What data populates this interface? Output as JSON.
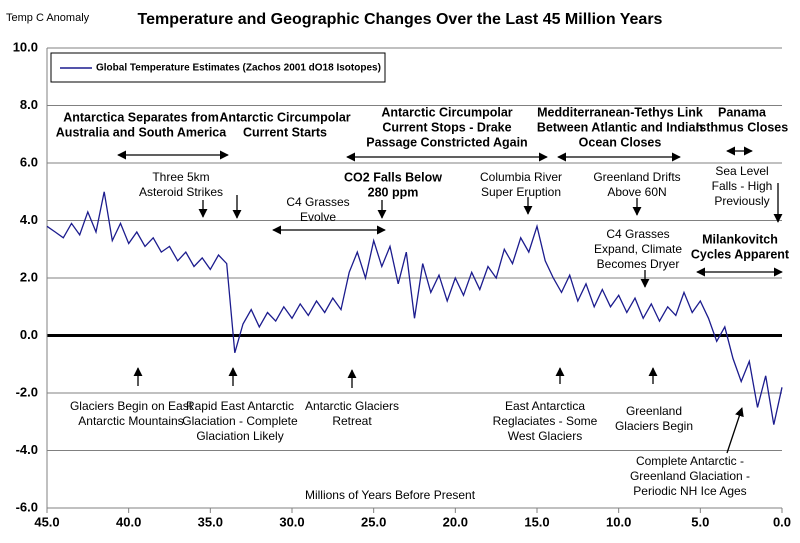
{
  "chart_data": {
    "type": "line",
    "title": "Temperature and Geographic Changes Over the Last 45 Million Years",
    "y_label": "Temp C Anomaly",
    "x_label": "Millions of Years Before Present",
    "x": [
      45.0,
      44.5,
      44.0,
      43.5,
      43.0,
      42.5,
      42.0,
      41.5,
      41.0,
      40.5,
      40.0,
      39.5,
      39.0,
      38.5,
      38.0,
      37.5,
      37.0,
      36.5,
      36.0,
      35.5,
      35.0,
      34.5,
      34.0,
      33.5,
      33.0,
      32.5,
      32.0,
      31.5,
      31.0,
      30.5,
      30.0,
      29.5,
      29.0,
      28.5,
      28.0,
      27.5,
      27.0,
      26.5,
      26.0,
      25.5,
      25.0,
      24.5,
      24.0,
      23.5,
      23.0,
      22.5,
      22.0,
      21.5,
      21.0,
      20.5,
      20.0,
      19.5,
      19.0,
      18.5,
      18.0,
      17.5,
      17.0,
      16.5,
      16.0,
      15.5,
      15.0,
      14.5,
      14.0,
      13.5,
      13.0,
      12.5,
      12.0,
      11.5,
      11.0,
      10.5,
      10.0,
      9.5,
      9.0,
      8.5,
      8.0,
      7.5,
      7.0,
      6.5,
      6.0,
      5.5,
      5.0,
      4.5,
      4.0,
      3.5,
      3.0,
      2.5,
      2.0,
      1.5,
      1.0,
      0.5,
      0.0
    ],
    "series": [
      {
        "name": "Global Temperature Estimates (Zachos 2001 dO18 Isotopes)",
        "color": "#1c1c8e",
        "values": [
          3.8,
          3.6,
          3.4,
          3.9,
          3.5,
          4.3,
          3.6,
          5.0,
          3.3,
          3.9,
          3.2,
          3.6,
          3.1,
          3.4,
          2.9,
          3.1,
          2.6,
          2.9,
          2.4,
          2.7,
          2.3,
          2.8,
          2.5,
          -0.6,
          0.4,
          0.9,
          0.3,
          0.8,
          0.5,
          1.0,
          0.6,
          1.1,
          0.7,
          1.2,
          0.8,
          1.3,
          0.9,
          2.2,
          2.9,
          2.0,
          3.3,
          2.4,
          3.1,
          1.8,
          2.9,
          0.6,
          2.5,
          1.5,
          2.1,
          1.2,
          2.0,
          1.4,
          2.2,
          1.6,
          2.4,
          2.0,
          3.0,
          2.5,
          3.4,
          2.9,
          3.8,
          2.6,
          2.0,
          1.5,
          2.1,
          1.2,
          1.8,
          1.0,
          1.6,
          1.0,
          1.4,
          0.8,
          1.3,
          0.6,
          1.1,
          0.5,
          1.0,
          0.7,
          1.5,
          0.8,
          1.2,
          0.6,
          -0.2,
          0.3,
          -0.8,
          -1.6,
          -0.9,
          -2.5,
          -1.4,
          -3.1,
          -1.8
        ]
      }
    ],
    "xlim": [
      45,
      0
    ],
    "xticks": [
      {
        "value": 45,
        "label": "45.0"
      },
      {
        "value": 40,
        "label": "40.0"
      },
      {
        "value": 35,
        "label": "35.0"
      },
      {
        "value": 30,
        "label": "30.0"
      },
      {
        "value": 25,
        "label": "25.0"
      },
      {
        "value": 20,
        "label": "20.0"
      },
      {
        "value": 15,
        "label": "15.0"
      },
      {
        "value": 10,
        "label": "10.0"
      },
      {
        "value": 5,
        "label": "5.0"
      },
      {
        "value": 0,
        "label": "0.0"
      }
    ],
    "ylim": [
      -6,
      10
    ],
    "yticks": [
      {
        "value": -6,
        "label": "-6.0"
      },
      {
        "value": -4,
        "label": "-4.0"
      },
      {
        "value": -2,
        "label": "-2.0"
      },
      {
        "value": 0,
        "label": "0.0"
      },
      {
        "value": 2,
        "label": "2.0"
      },
      {
        "value": 4,
        "label": "4.0"
      },
      {
        "value": 6,
        "label": "6.0"
      },
      {
        "value": 8,
        "label": "8.0"
      },
      {
        "value": 10,
        "label": "10.0"
      }
    ],
    "grid": true,
    "legend": "top-left",
    "annotations": [
      {
        "lines": [
          "Antarctica Separates from",
          "Australia and South America"
        ],
        "bold": true
      },
      {
        "lines": [
          "Antarctic Circumpolar",
          "Current Starts"
        ],
        "bold": true
      },
      {
        "lines": [
          "Antarctic Circumpolar",
          "Current Stops - Drake",
          "Passage Constricted Again"
        ],
        "bold": true
      },
      {
        "lines": [
          "Medditerranean-Tethys Link",
          "Between Atlantic and Indian",
          "Ocean Closes"
        ],
        "bold": true
      },
      {
        "lines": [
          "Panama",
          "Isthmus Closes"
        ],
        "bold": true
      },
      {
        "lines": [
          "Three 5km",
          "Asteroid Strikes"
        ],
        "bold": false
      },
      {
        "lines": [
          "C4 Grasses",
          "Evolve"
        ],
        "bold": false
      },
      {
        "lines": [
          "CO2 Falls Below",
          "280 ppm"
        ],
        "bold": true
      },
      {
        "lines": [
          "Columbia River",
          "Super Eruption"
        ],
        "bold": false
      },
      {
        "lines": [
          "Greenland Drifts",
          "Above 60N"
        ],
        "bold": false
      },
      {
        "lines": [
          "Sea Level",
          "Falls - High",
          "Previously"
        ],
        "bold": false
      },
      {
        "lines": [
          "C4 Grasses",
          "Expand, Climate",
          "Becomes Dryer"
        ],
        "bold": false
      },
      {
        "lines": [
          "Milankovitch",
          "Cycles Apparent"
        ],
        "bold": true
      },
      {
        "lines": [
          "Glaciers Begin on East",
          "Antarctic Mountains"
        ],
        "bold": false
      },
      {
        "lines": [
          "Rapid East Antarctic",
          "Glaciation - Complete",
          "Glaciation Likely"
        ],
        "bold": false
      },
      {
        "lines": [
          "Antarctic Glaciers",
          "Retreat"
        ],
        "bold": false
      },
      {
        "lines": [
          "East Antarctica",
          "Reglaciates - Some",
          "West Glaciers"
        ],
        "bold": false
      },
      {
        "lines": [
          "Greenland",
          "Glaciers Begin"
        ],
        "bold": false
      },
      {
        "lines": [
          "Complete Antarctic -",
          "Greenland Glaciation -",
          "Periodic NH Ice Ages"
        ],
        "bold": false
      }
    ]
  }
}
